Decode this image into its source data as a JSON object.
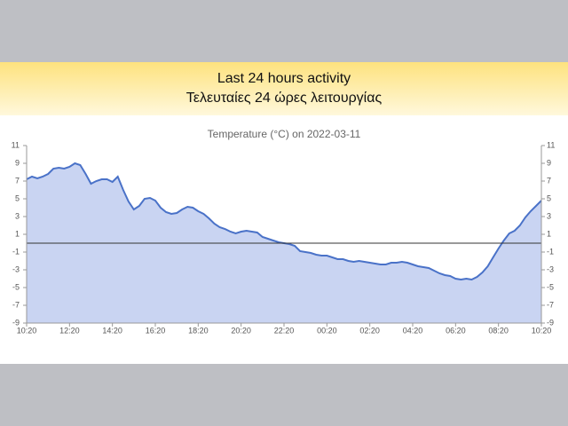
{
  "header": {
    "title": "Last 24 hours activity",
    "subtitle": "Τελευταίες 24 ώρες λειτουργίας"
  },
  "chart_data": {
    "type": "area",
    "title": "Temperature (°C) on 2022-03-11",
    "xticks": [
      "10:20",
      "12:20",
      "14:20",
      "16:20",
      "18:20",
      "20:20",
      "22:20",
      "00:20",
      "02:20",
      "04:20",
      "06:20",
      "08:20",
      "10:20"
    ],
    "values": [
      7.2,
      7.5,
      7.3,
      7.5,
      7.8,
      8.4,
      8.5,
      8.4,
      8.6,
      9.0,
      8.8,
      7.8,
      6.7,
      7.0,
      7.2,
      7.2,
      6.9,
      7.5,
      6.0,
      4.7,
      3.8,
      4.2,
      5.0,
      5.1,
      4.8,
      4.0,
      3.5,
      3.3,
      3.4,
      3.8,
      4.1,
      4.0,
      3.6,
      3.3,
      2.8,
      2.2,
      1.8,
      1.6,
      1.3,
      1.1,
      1.3,
      1.4,
      1.3,
      1.2,
      0.7,
      0.5,
      0.3,
      0.1,
      0.0,
      -0.1,
      -0.3,
      -0.9,
      -1.0,
      -1.1,
      -1.3,
      -1.4,
      -1.4,
      -1.6,
      -1.8,
      -1.8,
      -2.0,
      -2.1,
      -2.0,
      -2.1,
      -2.2,
      -2.3,
      -2.4,
      -2.4,
      -2.2,
      -2.2,
      -2.1,
      -2.2,
      -2.4,
      -2.6,
      -2.7,
      -2.8,
      -3.1,
      -3.4,
      -3.6,
      -3.7,
      -4.0,
      -4.1,
      -4.0,
      -4.1,
      -3.8,
      -3.3,
      -2.6,
      -1.6,
      -0.6,
      0.3,
      1.1,
      1.4,
      2.0,
      2.9,
      3.6,
      4.2,
      4.8
    ],
    "color": "#4a72c8",
    "fill_color": "#c9d4f2",
    "ylim": [
      -9,
      11
    ],
    "yticks": [
      11,
      9,
      7,
      5,
      3,
      1,
      -1,
      -3,
      -5,
      -7,
      -9
    ],
    "y2lim": [
      -9,
      11
    ],
    "y2ticks": [
      11,
      9,
      7,
      5,
      3,
      1,
      -1,
      -3,
      -5,
      -7,
      -9
    ]
  }
}
